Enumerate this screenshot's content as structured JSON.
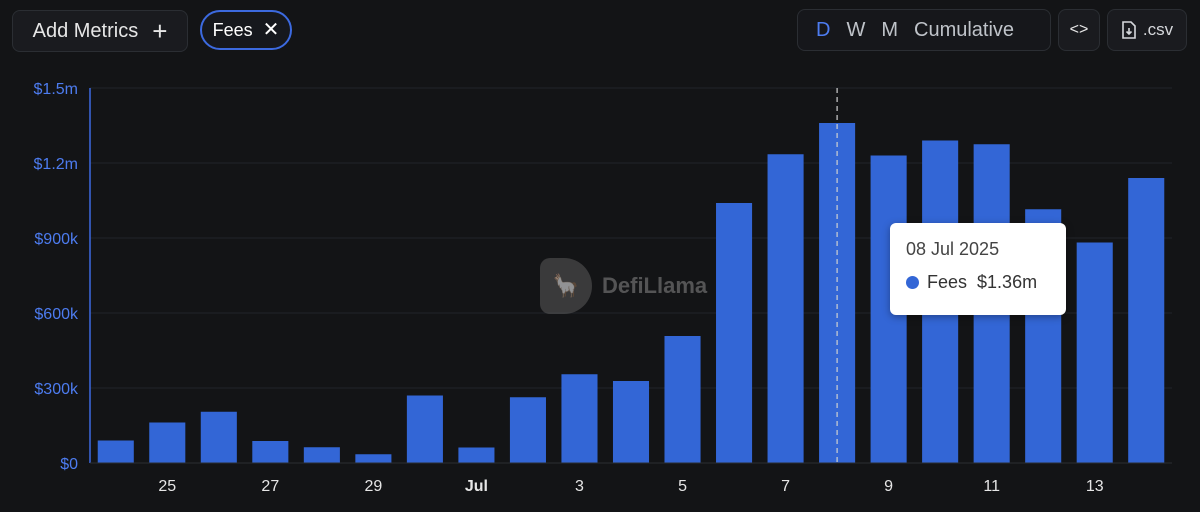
{
  "toolbar": {
    "add_metrics_label": "Add Metrics",
    "add_icon": "plus-icon",
    "metric_chip": "Fees",
    "remove_icon": "close-icon",
    "periods": [
      "D",
      "W",
      "M",
      "Cumulative"
    ],
    "active_period": "D",
    "embed_icon": "code-icon",
    "csv_label": ".csv",
    "csv_icon": "download-file-icon"
  },
  "watermark": {
    "text": "DefiLlama",
    "icon": "llama-logo-icon"
  },
  "tooltip": {
    "date": "08 Jul 2025",
    "series": "Fees",
    "value": "$1.36m"
  },
  "colors": {
    "bar": "#3366d6",
    "axis_text_y": "#4d7cf0",
    "background": "#131416",
    "active_period": "#4d7cf0"
  },
  "chart_data": {
    "type": "bar",
    "x": [
      "2025-06-24",
      "2025-06-25",
      "2025-06-26",
      "2025-06-27",
      "2025-06-28",
      "2025-06-29",
      "2025-06-30",
      "2025-07-01",
      "2025-07-02",
      "2025-07-03",
      "2025-07-04",
      "2025-07-05",
      "2025-07-06",
      "2025-07-07",
      "2025-07-08",
      "2025-07-09",
      "2025-07-10",
      "2025-07-11",
      "2025-07-12",
      "2025-07-13",
      "2025-07-14"
    ],
    "series": [
      {
        "name": "Fees",
        "values": [
          90000,
          162000,
          205000,
          88000,
          63000,
          35000,
          270000,
          62000,
          263000,
          355000,
          328000,
          508000,
          1040000,
          1235000,
          1360000,
          1230000,
          1290000,
          1275000,
          1015000,
          882000,
          1140000
        ]
      }
    ],
    "xtick_labels": [
      {
        "x": "2025-06-25",
        "label": "25"
      },
      {
        "x": "2025-06-27",
        "label": "27"
      },
      {
        "x": "2025-06-29",
        "label": "29"
      },
      {
        "x": "2025-07-01",
        "label": "Jul"
      },
      {
        "x": "2025-07-03",
        "label": "3"
      },
      {
        "x": "2025-07-05",
        "label": "5"
      },
      {
        "x": "2025-07-07",
        "label": "7"
      },
      {
        "x": "2025-07-09",
        "label": "9"
      },
      {
        "x": "2025-07-11",
        "label": "11"
      },
      {
        "x": "2025-07-13",
        "label": "13"
      }
    ],
    "ytick_values": [
      0,
      300000,
      600000,
      900000,
      1200000,
      1500000
    ],
    "ytick_labels": [
      "$0",
      "$300k",
      "$600k",
      "$900k",
      "$1.2m",
      "$1.5m"
    ],
    "ylim": [
      0,
      1500000
    ],
    "highlighted_x": "2025-07-08",
    "grid": true,
    "legend": "none"
  }
}
